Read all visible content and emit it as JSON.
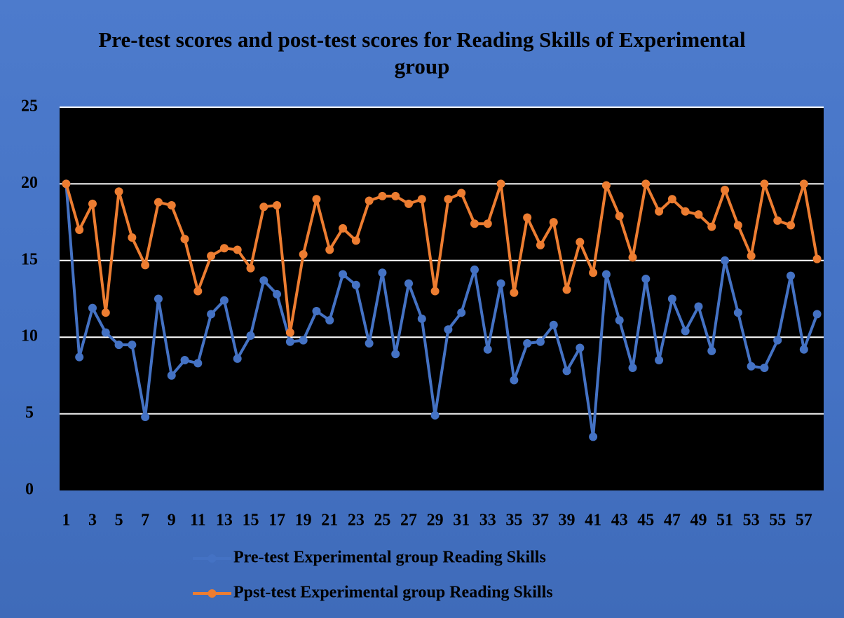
{
  "chart_data": {
    "type": "line",
    "title": "Pre-test scores and post-test scores for Reading Skills of Experimental group",
    "categories": [
      1,
      null,
      3,
      null,
      5,
      null,
      7,
      null,
      9,
      null,
      11,
      null,
      13,
      null,
      15,
      null,
      17,
      null,
      19,
      null,
      21,
      null,
      23,
      null,
      25,
      null,
      27,
      null,
      29,
      null,
      31,
      null,
      33,
      null,
      35,
      null,
      37,
      null,
      39,
      null,
      41,
      null,
      43,
      null,
      45,
      null,
      47,
      null,
      49,
      null,
      51,
      null,
      53,
      null,
      55,
      null,
      57,
      null
    ],
    "series": [
      {
        "name": "Pre-test Experimental group Reading Skills",
        "color": "#4472c4",
        "values": [
          20,
          8.7,
          11.9,
          10.3,
          9.5,
          9.5,
          4.8,
          12.5,
          7.5,
          8.5,
          8.3,
          11.5,
          12.4,
          8.6,
          10.1,
          13.7,
          12.8,
          9.7,
          9.8,
          11.7,
          11.1,
          14.1,
          13.4,
          9.6,
          14.2,
          8.9,
          13.5,
          11.2,
          4.9,
          10.5,
          11.6,
          14.4,
          9.2,
          13.5,
          7.2,
          9.6,
          9.7,
          10.8,
          7.8,
          9.3,
          3.5,
          14.1,
          11.1,
          8.0,
          13.8,
          8.5,
          12.5,
          10.4,
          12.0,
          9.1,
          15.0,
          11.6,
          8.1,
          8.0,
          9.8,
          14.0,
          9.2,
          11.5
        ]
      },
      {
        "name": "Ppst-test Experimental group Reading Skills",
        "color": "#ed7d31",
        "values": [
          20,
          17,
          18.7,
          11.6,
          19.5,
          16.5,
          14.7,
          18.8,
          18.6,
          16.4,
          13,
          15.3,
          15.8,
          15.7,
          14.5,
          18.5,
          18.6,
          10.3,
          15.4,
          19,
          15.7,
          17.1,
          16.3,
          18.9,
          19.2,
          19.2,
          18.7,
          19,
          13,
          19,
          19.4,
          17.4,
          17.4,
          20,
          12.9,
          17.8,
          16,
          17.5,
          13.1,
          16.2,
          14.2,
          19.9,
          17.9,
          15.2,
          20,
          18.2,
          19,
          18.2,
          18,
          17.2,
          19.6,
          17.3,
          15.3,
          20,
          17.6,
          17.3,
          20,
          15.1
        ]
      }
    ],
    "ylim": [
      0,
      25
    ],
    "yticks": [
      0,
      5,
      10,
      15,
      20,
      25
    ],
    "grid": true,
    "legend": "bottom"
  }
}
